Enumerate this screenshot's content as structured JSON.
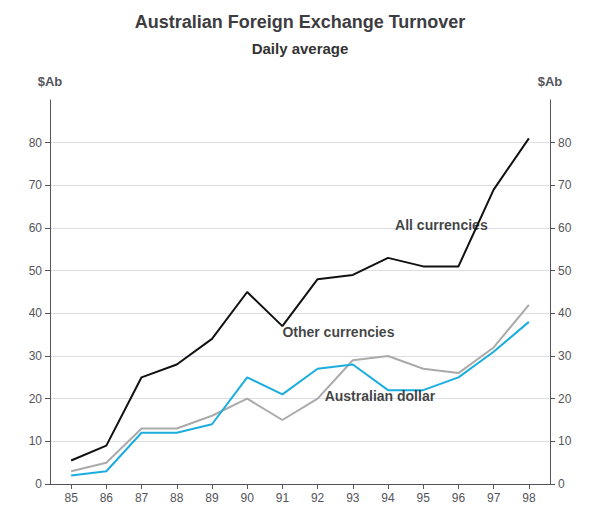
{
  "chart_data": {
    "type": "line",
    "title": "Australian Foreign Exchange Turnover",
    "subtitle": "Daily average",
    "ylabel": "$Ab",
    "y2label": "$Ab",
    "x": [
      85,
      86,
      87,
      88,
      89,
      90,
      91,
      92,
      93,
      94,
      95,
      96,
      97,
      98
    ],
    "series": [
      {
        "color": "#111111",
        "values": [
          5.5,
          9.0,
          25.0,
          28.0,
          34.0,
          45.0,
          37.0,
          48.0,
          49.0,
          53.0,
          51.0,
          51.0,
          69.0,
          81.0
        ]
      },
      {
        "color": "#aaaaaa",
        "values": [
          3.0,
          5.0,
          13.0,
          13.0,
          16.0,
          20.0,
          15.0,
          20.0,
          29.0,
          30.0,
          27.0,
          26.0,
          32.0,
          42.0
        ]
      },
      {
        "color": "#1aadde",
        "values": [
          2.0,
          3.0,
          12.0,
          12.0,
          14.0,
          25.0,
          21.0,
          27.0,
          28.0,
          22.0,
          22.0,
          25.0,
          31.0,
          38.0
        ]
      }
    ],
    "xlim": [
      84.4,
      98.6
    ],
    "xticks": [
      85,
      86,
      87,
      88,
      89,
      90,
      91,
      92,
      93,
      94,
      95,
      96,
      97,
      98
    ],
    "ylim": [
      0,
      90
    ],
    "yticks": [
      0,
      10,
      20,
      30,
      40,
      50,
      60,
      70,
      80
    ],
    "y2lim": [
      0,
      90
    ],
    "y2ticks": [
      0,
      10,
      20,
      30,
      40,
      50,
      60,
      70,
      80
    ],
    "annotations": [
      {
        "text": "All currencies",
        "x": 94.2,
        "y": 59
      },
      {
        "text": "Other currencies",
        "x": 91.0,
        "y": 34
      },
      {
        "text": "Australian dollar",
        "x": 92.2,
        "y": 19
      }
    ],
    "grid": true
  }
}
